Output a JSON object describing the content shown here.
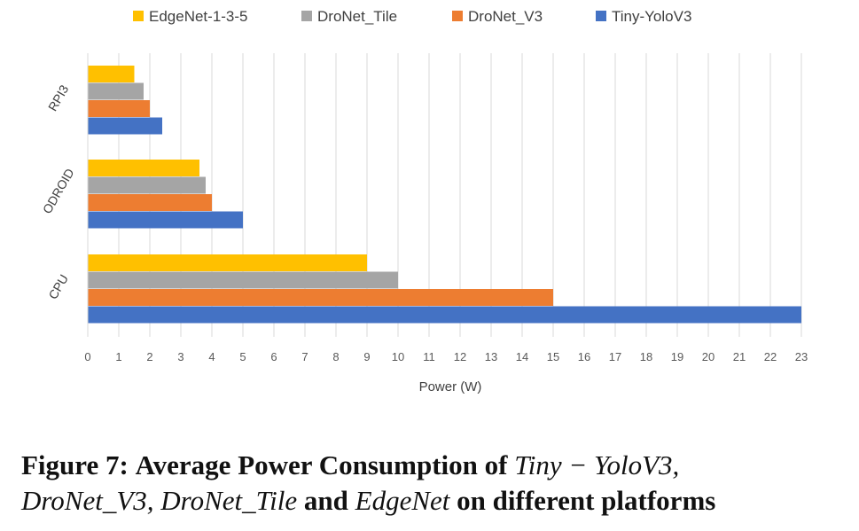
{
  "chart_data": {
    "type": "bar",
    "orientation": "horizontal",
    "categories": [
      "CPU",
      "ODROID",
      "RPI3"
    ],
    "series": [
      {
        "name": "Tiny-YoloV3",
        "color": "#4472C4",
        "values": [
          23,
          5,
          2.4
        ]
      },
      {
        "name": "DroNet_V3",
        "color": "#ED7D31",
        "values": [
          15,
          4,
          2
        ]
      },
      {
        "name": "DroNet_Tile",
        "color": "#A5A5A5",
        "values": [
          10,
          3.8,
          1.8
        ]
      },
      {
        "name": "EdgeNet-1-3-5",
        "color": "#FFC000",
        "values": [
          9,
          3.6,
          1.5
        ]
      }
    ],
    "legend_order": [
      "EdgeNet-1-3-5",
      "DroNet_Tile",
      "DroNet_V3",
      "Tiny-YoloV3"
    ],
    "legend_position": "top",
    "xlabel": "Power (W)",
    "ylabel": "",
    "xlim": [
      0,
      23
    ],
    "xticks": [
      "0",
      "1",
      "2",
      "3",
      "4",
      "5",
      "6",
      "7",
      "8",
      "9",
      "10",
      "11",
      "12",
      "13",
      "14",
      "15",
      "16",
      "17",
      "18",
      "19",
      "20",
      "21",
      "22",
      "23"
    ],
    "grid": true
  },
  "caption": {
    "label": "Figure 7:",
    "text_1": "Average Power Consumption of",
    "term_1": "Tiny − YoloV3,",
    "term_2": "DroNet_V3,",
    "term_3": "DroNet_Tile",
    "text_2": "and",
    "term_4": "EdgeNet",
    "text_3": "on different platforms"
  }
}
